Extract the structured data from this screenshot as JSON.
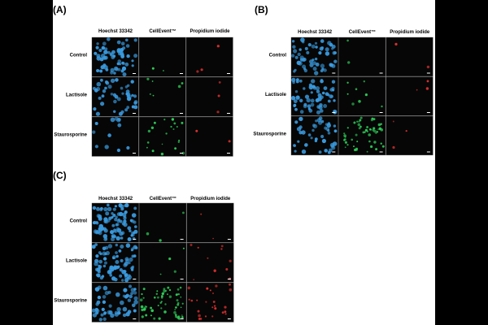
{
  "panels": [
    {
      "label": "(A)",
      "columns": [
        "Hoechst 33342",
        "CellEvent™",
        "Propidium iodide"
      ],
      "rows": [
        "Control",
        "Lactisole",
        "Staurosporine"
      ]
    },
    {
      "label": "(B)",
      "columns": [
        "Hoechst 33342",
        "CellEvent™",
        "Propidium iodide"
      ],
      "rows": [
        "Control",
        "Lactisole",
        "Staurosporine"
      ]
    },
    {
      "label": "(C)",
      "columns": [
        "Hoechst 33342",
        "CellEvent™",
        "Propidium iodide"
      ],
      "rows": [
        "Control",
        "Lactisole",
        "Staurosporine"
      ]
    }
  ]
}
